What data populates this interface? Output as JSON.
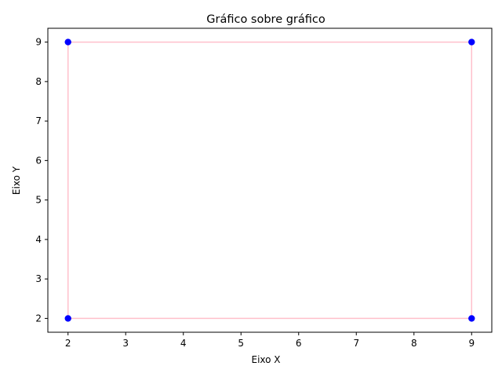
{
  "chart_data": {
    "type": "scatter",
    "title": "Gráfico sobre gráfico",
    "xlabel": "Eixo X",
    "ylabel": "Eixo Y",
    "xlim": [
      1.65,
      9.35
    ],
    "ylim": [
      1.65,
      9.35
    ],
    "x_ticks": [
      "2",
      "3",
      "4",
      "5",
      "6",
      "7",
      "8",
      "9"
    ],
    "y_ticks": [
      "2",
      "3",
      "4",
      "5",
      "6",
      "7",
      "8",
      "9"
    ],
    "grid": false,
    "series": [
      {
        "kind": "line",
        "color": "#ffc0cb",
        "x": [
          2,
          9,
          9,
          2,
          2
        ],
        "y": [
          2,
          2,
          9,
          9,
          2
        ]
      },
      {
        "kind": "scatter",
        "color": "#0000ff",
        "x": [
          2,
          9,
          9,
          2
        ],
        "y": [
          2,
          2,
          9,
          9
        ]
      }
    ]
  }
}
